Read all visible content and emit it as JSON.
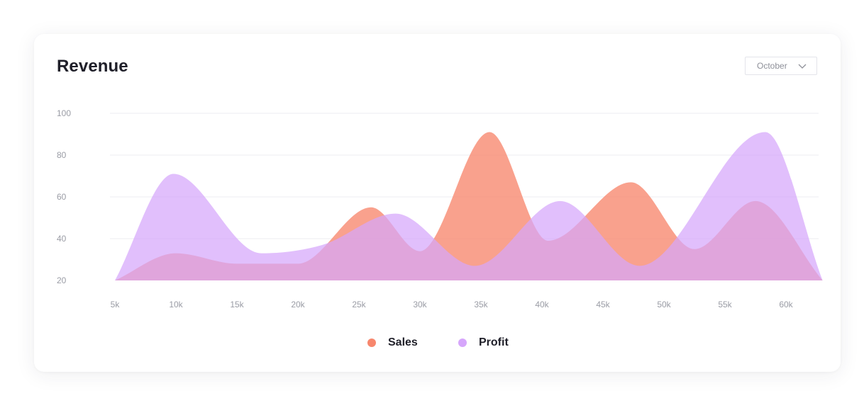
{
  "card": {
    "title": "Revenue"
  },
  "period_select": {
    "selected": "October"
  },
  "colors": {
    "sales": "#f7876d",
    "profit": "#d6a6fb",
    "grid": "#ececf0",
    "tick": "#9a9ca5"
  },
  "chart_data": {
    "type": "area",
    "title": "Revenue",
    "xlabel": "",
    "ylabel": "",
    "ylim": [
      20,
      100
    ],
    "xlim": [
      5,
      63
    ],
    "x_ticks": [
      "5k",
      "10k",
      "15k",
      "20k",
      "25k",
      "30k",
      "35k",
      "40k",
      "45k",
      "50k",
      "55k",
      "60k"
    ],
    "y_ticks": [
      "100",
      "80",
      "60",
      "40",
      "20"
    ],
    "grid": true,
    "legend": "bottom-center",
    "series": [
      {
        "name": "Sales",
        "x": [
          5,
          10,
          15,
          20,
          26,
          30,
          35.7,
          40.5,
          47.3,
          52.5,
          57.5,
          63
        ],
        "values": [
          20,
          33,
          28,
          28,
          55,
          34,
          91,
          39,
          67,
          35,
          58,
          20
        ]
      },
      {
        "name": "Profit",
        "x": [
          5,
          9.8,
          17,
          22,
          28,
          34.5,
          41.5,
          48,
          58.3,
          63
        ],
        "values": [
          20,
          71,
          33,
          37,
          52,
          27,
          58,
          27,
          91,
          20
        ]
      }
    ]
  }
}
